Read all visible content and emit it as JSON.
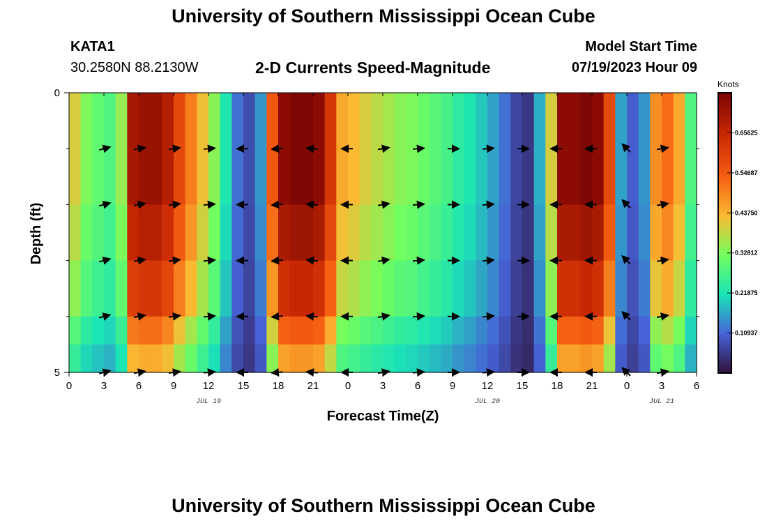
{
  "page": {
    "title": "University of Southern Mississippi Ocean Cube",
    "bottom_title": "University of Southern Mississippi Ocean Cube",
    "station": "KATA1",
    "location": "30.2580N  88.2130W",
    "subtitle": "2-D Currents Speed-Magnitude",
    "model_start_label": "Model Start Time",
    "model_start_value": "07/19/2023 Hour 09"
  },
  "chart_data": {
    "type": "heatmap",
    "title": "2-D Currents Speed-Magnitude",
    "xlabel": "Forecast Time(Z)",
    "ylabel": "Depth (ft)",
    "x_range": [
      0,
      54
    ],
    "y_range": [
      0,
      5
    ],
    "x_ticks": [
      {
        "value": 0,
        "label": "0"
      },
      {
        "value": 3,
        "label": "3"
      },
      {
        "value": 6,
        "label": "6"
      },
      {
        "value": 9,
        "label": "9"
      },
      {
        "value": 12,
        "label": "12"
      },
      {
        "value": 15,
        "label": "15"
      },
      {
        "value": 18,
        "label": "18"
      },
      {
        "value": 21,
        "label": "21"
      },
      {
        "value": 24,
        "label": "0"
      },
      {
        "value": 27,
        "label": "3"
      },
      {
        "value": 30,
        "label": "6"
      },
      {
        "value": 33,
        "label": "9"
      },
      {
        "value": 36,
        "label": "12"
      },
      {
        "value": 39,
        "label": "15"
      },
      {
        "value": 42,
        "label": "18"
      },
      {
        "value": 45,
        "label": "21"
      },
      {
        "value": 48,
        "label": "0"
      },
      {
        "value": 51,
        "label": "3"
      },
      {
        "value": 54,
        "label": "6"
      }
    ],
    "date_labels": [
      {
        "value": 12,
        "label": "JUL 19"
      },
      {
        "value": 36,
        "label": "JUL 20"
      },
      {
        "value": 51,
        "label": "JUL 21"
      }
    ],
    "y_ticks": [
      {
        "value": 0,
        "label": "0"
      },
      {
        "value": 5,
        "label": "5"
      }
    ],
    "colorbar": {
      "units": "Knots",
      "range": [
        0,
        0.765625
      ],
      "ticks": [
        "0.10937",
        "0.21875",
        "0.32812",
        "0.43750",
        "0.54687",
        "0.65625"
      ],
      "tick_values": [
        0.109375,
        0.21875,
        0.328125,
        0.4375,
        0.546875,
        0.65625
      ]
    },
    "time_columns": [
      0,
      1,
      2,
      3,
      4,
      5,
      6,
      7,
      8,
      9,
      10,
      11,
      12,
      13,
      14,
      15,
      16,
      17,
      18,
      19,
      20,
      21,
      22,
      23,
      24,
      25,
      26,
      27,
      28,
      29,
      30,
      31,
      32,
      33,
      34,
      35,
      36,
      37,
      38,
      39,
      40,
      41,
      42,
      43,
      44,
      45,
      46,
      47,
      48,
      49,
      50,
      51,
      52,
      53
    ],
    "depth_layers": [
      0,
      1,
      2,
      3,
      4,
      4.5
    ],
    "speed_profile": [
      0.4,
      0.33,
      0.3,
      0.28,
      0.35,
      0.7,
      0.72,
      0.72,
      0.68,
      0.58,
      0.5,
      0.42,
      0.34,
      0.22,
      0.12,
      0.08,
      0.15,
      0.55,
      0.74,
      0.76,
      0.76,
      0.74,
      0.62,
      0.45,
      0.43,
      0.4,
      0.38,
      0.36,
      0.34,
      0.33,
      0.31,
      0.29,
      0.27,
      0.24,
      0.22,
      0.19,
      0.16,
      0.12,
      0.07,
      0.05,
      0.17,
      0.4,
      0.74,
      0.74,
      0.76,
      0.74,
      0.58,
      0.16,
      0.1,
      0.15,
      0.48,
      0.52,
      0.45,
      0.28
    ],
    "depth_factor": [
      1.0,
      1.0,
      0.94,
      0.86,
      0.72,
      0.62
    ],
    "vectors": {
      "depths": [
        1,
        2,
        3,
        4,
        5
      ],
      "times": [
        3,
        6,
        9,
        12,
        15,
        18,
        21,
        24,
        27,
        30,
        33,
        36,
        39,
        42,
        45,
        48,
        51
      ],
      "direction_deg": [
        15,
        10,
        8,
        5,
        180,
        185,
        175,
        180,
        10,
        5,
        0,
        5,
        0,
        180,
        180,
        135,
        10
      ]
    }
  }
}
